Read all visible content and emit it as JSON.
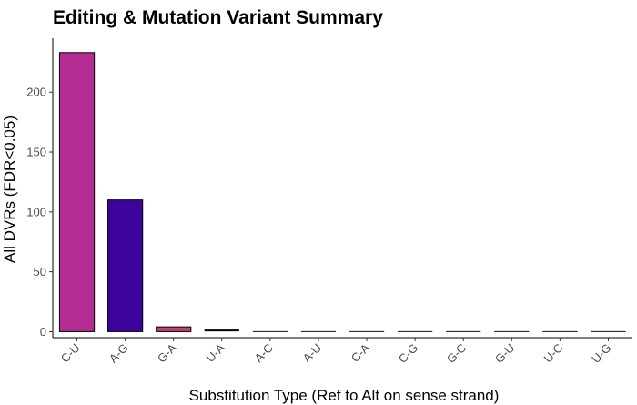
{
  "chart_data": {
    "type": "bar",
    "title": "Editing & Mutation Variant Summary",
    "xlabel": "Substitution Type (Ref to Alt on sense strand)",
    "ylabel": "All DVRs (FDR<0.05)",
    "categories": [
      "C-U",
      "A-G",
      "G-A",
      "U-A",
      "A-C",
      "A-U",
      "C-A",
      "C-G",
      "G-C",
      "G-U",
      "U-C",
      "U-G"
    ],
    "values": [
      233,
      110,
      4,
      1,
      0,
      0,
      0,
      0,
      0,
      0,
      0,
      0
    ],
    "colors": [
      "#b52d94",
      "#3d049c",
      "#c23e74",
      "#2a0a5e",
      "#111111",
      "#111111",
      "#111111",
      "#111111",
      "#111111",
      "#111111",
      "#111111",
      "#111111"
    ],
    "yticks": [
      0,
      50,
      100,
      150,
      200
    ],
    "ylim": [
      -5,
      245
    ],
    "grid": false,
    "legend": "none"
  }
}
